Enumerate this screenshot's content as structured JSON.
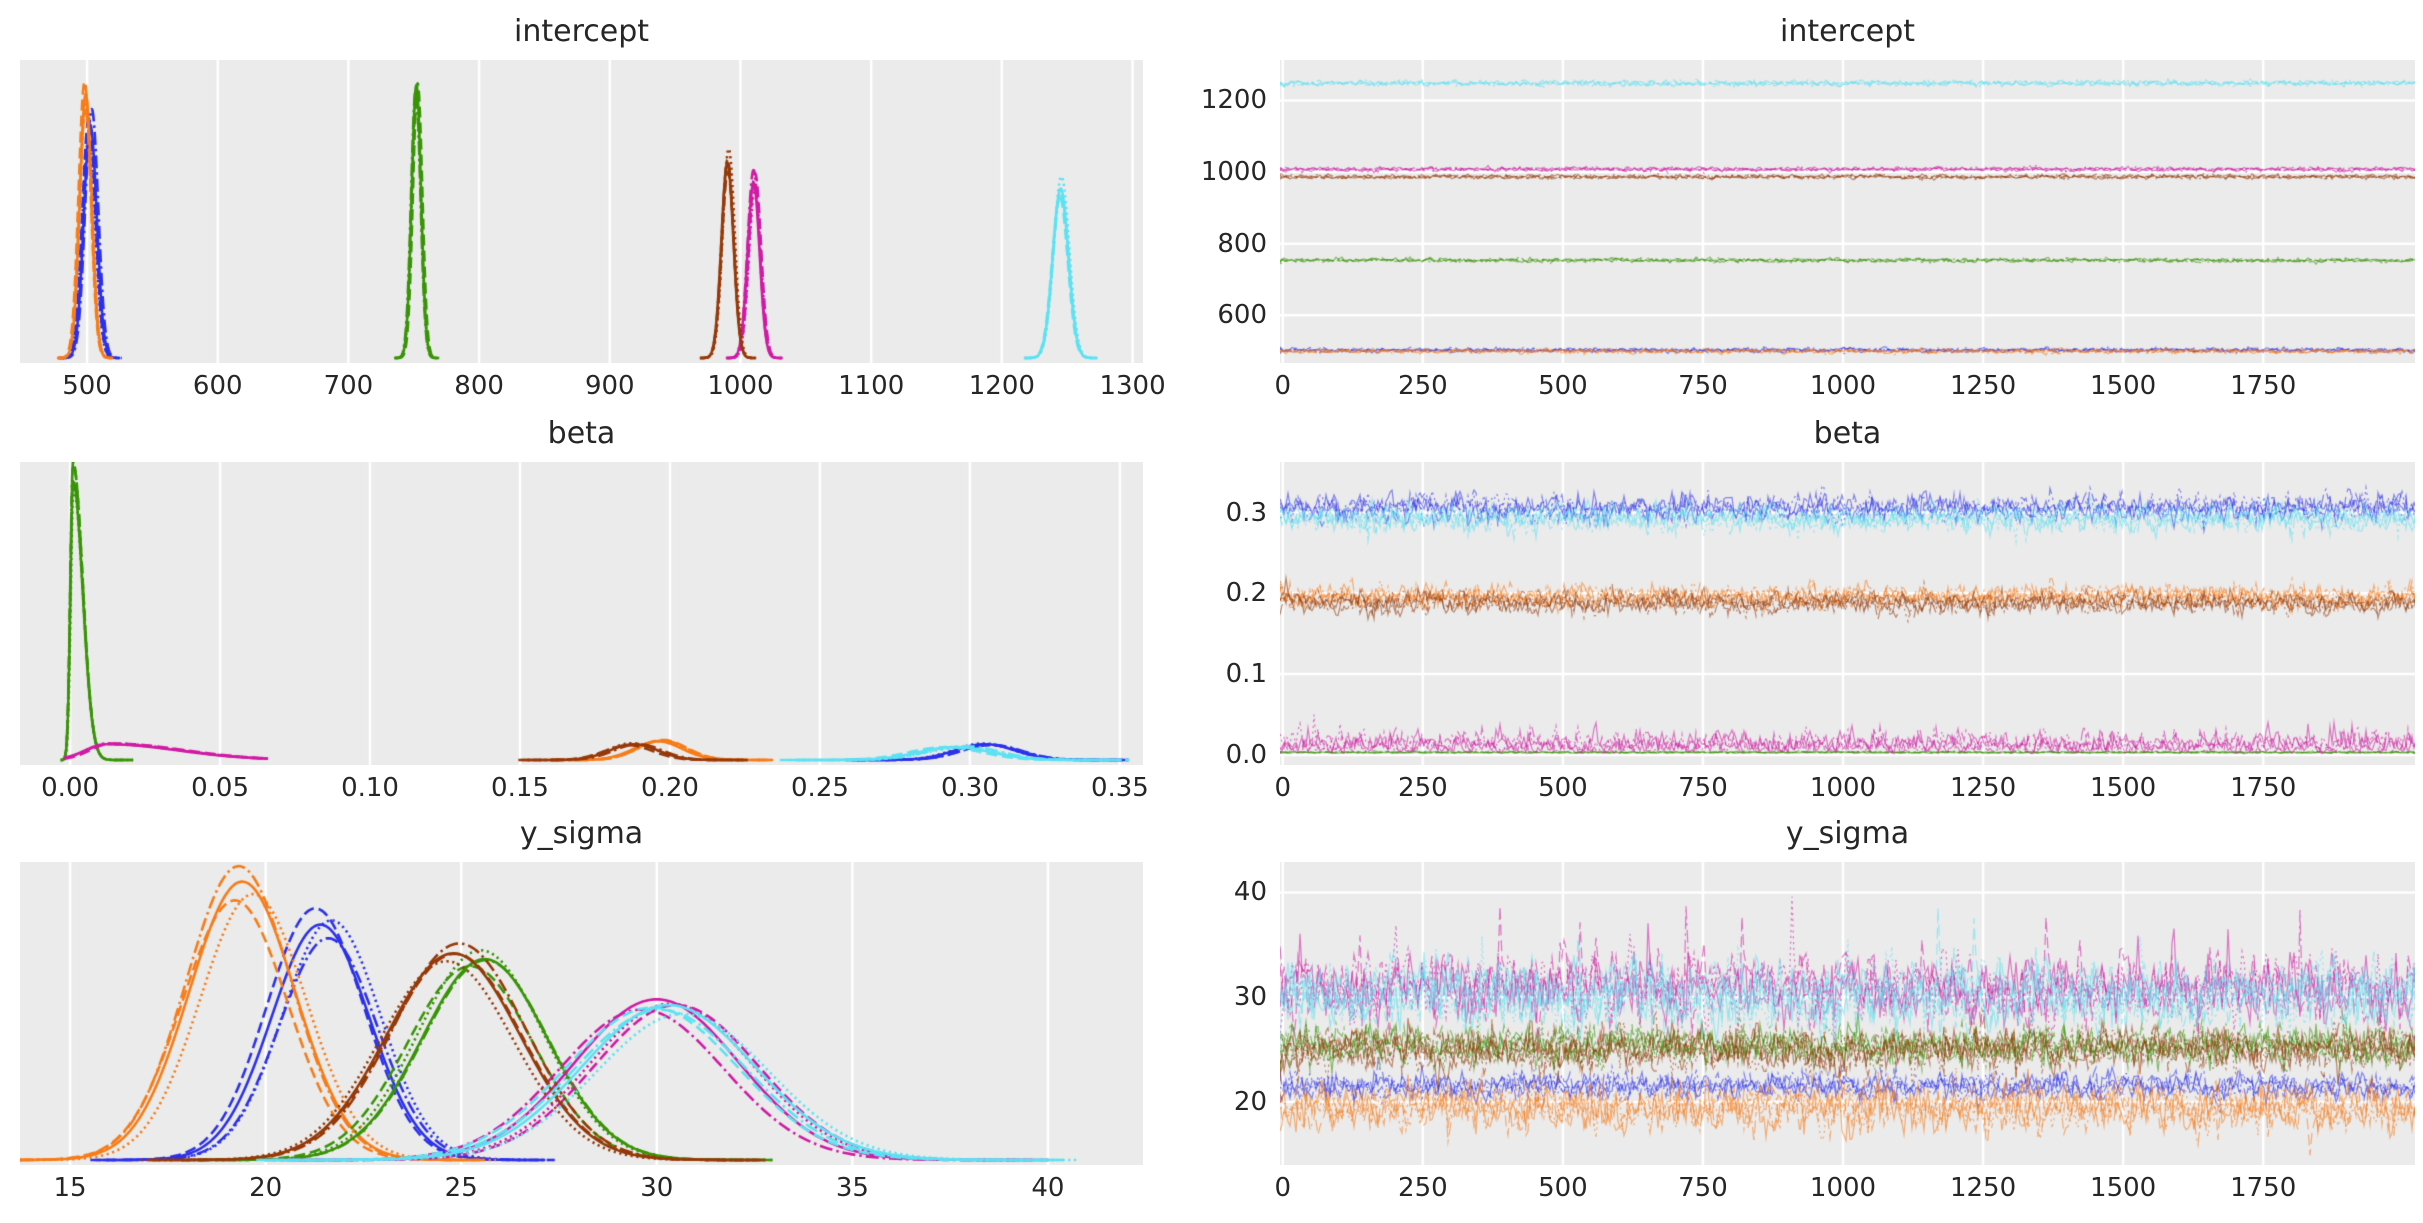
{
  "figure": {
    "background": "#ffffff",
    "plot_background": "#ebebeb",
    "grid_color": "#ffffff",
    "text_color": "#262626"
  },
  "chains": {
    "count": 4,
    "linestyles": [
      "solid",
      "dashed",
      "dashdot",
      "dotted"
    ]
  },
  "chart_data": [
    {
      "id": "intercept-density",
      "type": "kde",
      "title": "intercept",
      "xlabel_ticks": [
        "500",
        "600",
        "700",
        "800",
        "900",
        "1000",
        "1100",
        "1200",
        "1300"
      ],
      "xticks": [
        500,
        600,
        700,
        800,
        900,
        1000,
        1100,
        1200,
        1300
      ],
      "xlim": [
        448.7,
        1308
      ],
      "series": [
        {
          "name": "model-blue",
          "color": "#2c31ea",
          "mean": 502.5,
          "sd": 5.0,
          "height": 0.81
        },
        {
          "name": "model-orange",
          "color": "#f87c17",
          "mean": 499.0,
          "sd": 4.6,
          "height": 0.92
        },
        {
          "name": "model-green",
          "color": "#389406",
          "mean": 752.0,
          "sd": 3.6,
          "height": 0.95
        },
        {
          "name": "model-magenta",
          "color": "#d01ba4",
          "mean": 1010.0,
          "sd": 4.6,
          "height": 0.61
        },
        {
          "name": "model-brown",
          "color": "#963908",
          "mean": 990.0,
          "sd": 4.6,
          "height": 0.68
        },
        {
          "name": "model-cyan",
          "color": "#5ce2f2",
          "mean": 1245.0,
          "sd": 6.0,
          "height": 0.59
        }
      ]
    },
    {
      "id": "intercept-trace",
      "type": "trace",
      "title": "intercept",
      "xlabel_ticks": [
        "0",
        "250",
        "500",
        "750",
        "1000",
        "1250",
        "1500",
        "1750"
      ],
      "xticks": [
        0,
        250,
        500,
        750,
        1000,
        1250,
        1500,
        1750
      ],
      "xlim": [
        -5,
        2021
      ],
      "ylabel_ticks": [
        "600",
        "800",
        "1000",
        "1200"
      ],
      "yticks": [
        600,
        800,
        1000,
        1200
      ],
      "ylim": [
        467,
        1313
      ],
      "series": [
        {
          "name": "model-blue",
          "color": "#2c31ea",
          "mean": 503.0,
          "sd": 4.5
        },
        {
          "name": "model-orange",
          "color": "#f87c17",
          "mean": 500.0,
          "sd": 4.5
        },
        {
          "name": "model-green",
          "color": "#389406",
          "mean": 754.0,
          "sd": 4.0
        },
        {
          "name": "model-magenta",
          "color": "#d01ba4",
          "mean": 1008.0,
          "sd": 4.5
        },
        {
          "name": "model-brown",
          "color": "#963908",
          "mean": 987.0,
          "sd": 4.5
        },
        {
          "name": "model-cyan",
          "color": "#5ce2f2",
          "mean": 1248.0,
          "sd": 5.5
        }
      ]
    },
    {
      "id": "beta-density",
      "type": "kde",
      "title": "beta",
      "xlabel_ticks": [
        "0.00",
        "0.05",
        "0.10",
        "0.15",
        "0.20",
        "0.25",
        "0.30",
        "0.35"
      ],
      "xticks": [
        0.0,
        0.05,
        0.1,
        0.15,
        0.2,
        0.25,
        0.3,
        0.35
      ],
      "xlim": [
        -0.0167,
        0.3577
      ],
      "series": [
        {
          "name": "model-blue",
          "color": "#2c31ea",
          "mean": 0.305,
          "sd": 0.01,
          "height": 0.055
        },
        {
          "name": "model-orange",
          "color": "#f87c17",
          "mean": 0.196,
          "sd": 0.008,
          "height": 0.065
        },
        {
          "name": "model-green",
          "color": "#389406",
          "mean": 0.001,
          "sl": 0.0009,
          "sr": 0.0032,
          "height": 0.97,
          "xmax": 0.021
        },
        {
          "name": "model-magenta",
          "color": "#d01ba4",
          "mean": 0.012,
          "sl": 0.007,
          "sr": 0.024,
          "height": 0.055,
          "xmin": -0.002,
          "xmax": 0.066
        },
        {
          "name": "model-brown",
          "color": "#963908",
          "mean": 0.188,
          "sd": 0.008,
          "height": 0.055
        },
        {
          "name": "model-cyan",
          "color": "#5ce2f2",
          "mean": 0.295,
          "sd": 0.012,
          "height": 0.045
        }
      ]
    },
    {
      "id": "beta-trace",
      "type": "trace",
      "title": "beta",
      "xlabel_ticks": [
        "0",
        "250",
        "500",
        "750",
        "1000",
        "1250",
        "1500",
        "1750"
      ],
      "xticks": [
        0,
        250,
        500,
        750,
        1000,
        1250,
        1500,
        1750
      ],
      "xlim": [
        -5,
        2021
      ],
      "ylabel_ticks": [
        "0.0",
        "0.1",
        "0.2",
        "0.3"
      ],
      "yticks": [
        0.0,
        0.1,
        0.2,
        0.3
      ],
      "ylim": [
        -0.0125,
        0.3625
      ],
      "series": [
        {
          "name": "model-blue",
          "color": "#2c31ea",
          "mean": 0.305,
          "sd": 0.012
        },
        {
          "name": "model-orange",
          "color": "#f87c17",
          "mean": 0.196,
          "sd": 0.01
        },
        {
          "name": "model-green",
          "color": "#389406",
          "mean": 0.002,
          "sd": 0.0015,
          "half": true
        },
        {
          "name": "model-magenta",
          "color": "#d01ba4",
          "mean": 0.0,
          "sd": 0.016,
          "half": true
        },
        {
          "name": "model-brown",
          "color": "#963908",
          "mean": 0.188,
          "sd": 0.01
        },
        {
          "name": "model-cyan",
          "color": "#5ce2f2",
          "mean": 0.293,
          "sd": 0.012
        }
      ]
    },
    {
      "id": "y_sigma-density",
      "type": "kde",
      "title": "y_sigma",
      "xlabel_ticks": [
        "15",
        "20",
        "25",
        "30",
        "35",
        "40"
      ],
      "xticks": [
        15,
        20,
        25,
        30,
        35,
        40
      ],
      "xlim": [
        13.72,
        42.43
      ],
      "series": [
        {
          "name": "model-blue",
          "color": "#2c31ea",
          "mean": 21.4,
          "sd": 1.25,
          "height": 0.82
        },
        {
          "name": "model-orange",
          "color": "#f87c17",
          "mean": 19.4,
          "sd": 1.35,
          "height": 0.97
        },
        {
          "name": "model-green",
          "color": "#389406",
          "mean": 25.6,
          "sd": 1.6,
          "height": 0.7
        },
        {
          "name": "model-magenta",
          "color": "#d01ba4",
          "mean": 30.0,
          "sd": 2.1,
          "height": 0.56
        },
        {
          "name": "model-brown",
          "color": "#963908",
          "mean": 24.8,
          "sd": 1.7,
          "height": 0.72
        },
        {
          "name": "model-cyan",
          "color": "#5ce2f2",
          "mean": 30.3,
          "sd": 2.2,
          "height": 0.54
        }
      ]
    },
    {
      "id": "y_sigma-trace",
      "type": "trace",
      "title": "y_sigma",
      "xlabel_ticks": [
        "0",
        "250",
        "500",
        "750",
        "1000",
        "1250",
        "1500",
        "1750"
      ],
      "xticks": [
        0,
        250,
        500,
        750,
        1000,
        1250,
        1500,
        1750
      ],
      "xlim": [
        -5,
        2021
      ],
      "ylabel_ticks": [
        "20",
        "30",
        "40"
      ],
      "yticks": [
        20,
        30,
        40
      ],
      "ylim": [
        14.0,
        42.9
      ],
      "series": [
        {
          "name": "model-blue",
          "color": "#2c31ea",
          "mean": 21.5,
          "sd": 0.9
        },
        {
          "name": "model-orange",
          "color": "#f87c17",
          "mean": 19.4,
          "sd": 1.6
        },
        {
          "name": "model-green",
          "color": "#389406",
          "mean": 25.4,
          "sd": 1.3
        },
        {
          "name": "model-magenta",
          "color": "#d01ba4",
          "mean": 30.8,
          "sd": 2.3,
          "spikes": true
        },
        {
          "name": "model-brown",
          "color": "#963908",
          "mean": 25.0,
          "sd": 1.5
        },
        {
          "name": "model-cyan",
          "color": "#5ce2f2",
          "mean": 30.2,
          "sd": 2.3,
          "spikes": true
        }
      ]
    }
  ]
}
